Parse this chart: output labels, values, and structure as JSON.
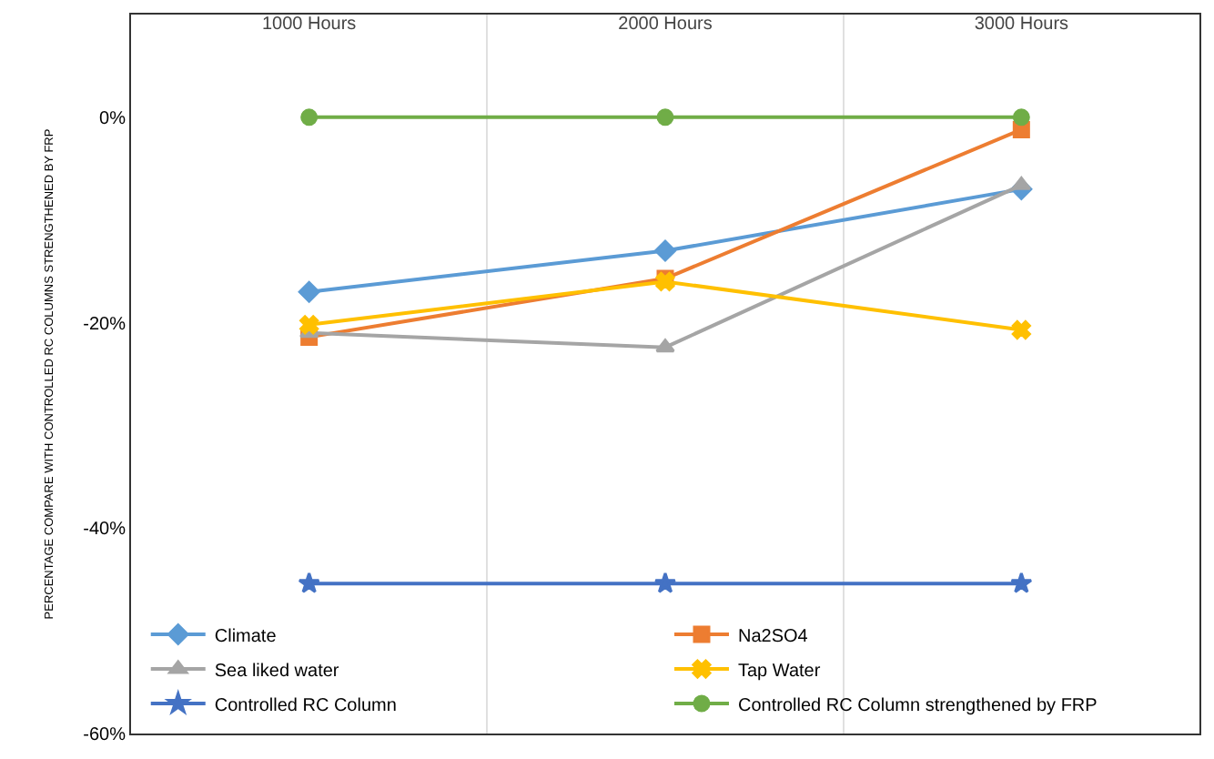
{
  "chart_data": {
    "type": "line",
    "ylabel": "PERCENTAGE COMPARE WITH CONTROLLED RC COLUMNS STRENGTHENED BY FRP",
    "categories": [
      "1000 Hours",
      "2000 Hours",
      "3000 Hours"
    ],
    "series": [
      {
        "name": "Climate",
        "color": "#5b9bd5",
        "marker": "diamond",
        "values": [
          -17.0,
          -13.0,
          -7.0
        ]
      },
      {
        "name": "Na2SO4",
        "color": "#ed7d31",
        "marker": "square",
        "values": [
          -21.4,
          -15.7,
          -1.2
        ]
      },
      {
        "name": "Sea liked water",
        "color": "#a5a5a5",
        "marker": "triangle",
        "values": [
          -21.0,
          -22.4,
          -6.6
        ]
      },
      {
        "name": "Tap Water",
        "color": "#ffc000",
        "marker": "cross",
        "values": [
          -20.2,
          -16.0,
          -20.7
        ]
      },
      {
        "name": "Controlled RC Column",
        "color": "#4472c4",
        "marker": "star",
        "values": [
          -45.4,
          -45.4,
          -45.4
        ]
      },
      {
        "name": "Controlled RC Column strengthened by FRP",
        "color": "#70ad47",
        "marker": "circle",
        "values": [
          0,
          0,
          0
        ]
      }
    ],
    "ylim": [
      -60,
      10
    ],
    "yticks": [
      {
        "value": 0,
        "label": "0%"
      },
      {
        "value": -20,
        "label": "-20%"
      },
      {
        "value": -40,
        "label": "-40%"
      },
      {
        "value": -60,
        "label": "-60%"
      }
    ],
    "grid": "x",
    "legend": "bottom"
  }
}
